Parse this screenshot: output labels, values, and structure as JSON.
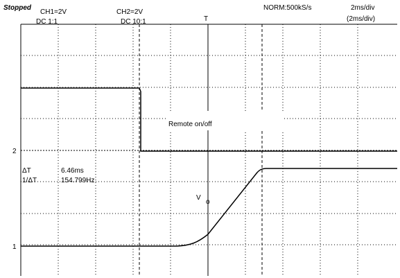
{
  "status": "Stopped",
  "ch1": {
    "scale": "CH1=2V",
    "coupling": "DC  1:1",
    "marker": "1"
  },
  "ch2": {
    "scale": "CH2=2V",
    "coupling": "DC  10:1",
    "marker": "2"
  },
  "acquisition": "NORM:500kS/s",
  "timebase": "2ms/div",
  "timebase_zoom": "(2ms/div)",
  "trigger_marker": "T",
  "cursor": {
    "dt_label": "ΔT",
    "dt_value": "6.46ms",
    "inv_label": "1/ΔT",
    "inv_value": "154.799Hz"
  },
  "annotations": {
    "remote": "Remote on/off",
    "vo_main": "V",
    "vo_sub": "o"
  }
}
